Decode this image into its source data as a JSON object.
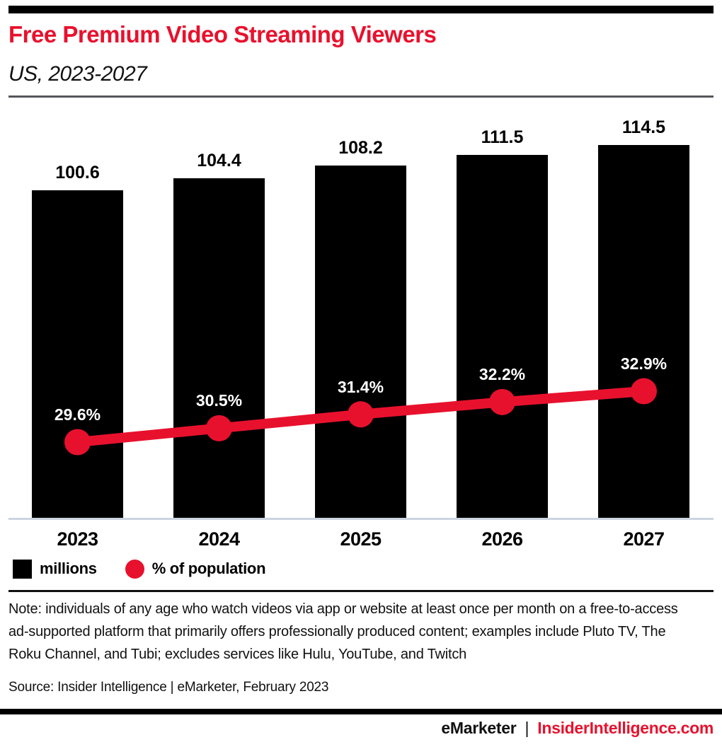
{
  "header": {
    "title": "Free Premium Video Streaming Viewers",
    "subtitle": "US, 2023-2027"
  },
  "chart_data": {
    "type": "bar",
    "categories": [
      "2023",
      "2024",
      "2025",
      "2026",
      "2027"
    ],
    "series": [
      {
        "name": "millions",
        "type": "bar",
        "color": "#000000",
        "values": [
          100.6,
          104.4,
          108.2,
          111.5,
          114.5
        ]
      },
      {
        "name": "% of population",
        "type": "line",
        "color": "#e8112d",
        "values": [
          29.6,
          30.5,
          31.4,
          32.2,
          32.9
        ]
      }
    ],
    "labels": {
      "bars": [
        "100.6",
        "104.4",
        "108.2",
        "111.5",
        "114.5"
      ],
      "line": [
        "29.6%",
        "30.5%",
        "31.4%",
        "32.2%",
        "32.9%"
      ]
    },
    "title": "Free Premium Video Streaming Viewers",
    "subtitle": "US, 2023-2027",
    "xlabel": "",
    "ylabel": "",
    "grid": false,
    "legend_position": "bottom-left"
  },
  "legend": {
    "bar_label": "millions",
    "line_label": "% of population"
  },
  "note": "Note: individuals of any age who watch videos via app or website at least once per month on a free-to-access ad-supported platform that primarily offers professionally produced content; examples include Pluto TV, The Roku Channel, and Tubi; excludes services like Hulu, YouTube, and Twitch",
  "source": "Source: Insider Intelligence | eMarketer, February 2023",
  "footer": {
    "brand": "eMarketer",
    "separator": "|",
    "site": "InsiderIntelligence.com"
  },
  "colors": {
    "accent_red": "#e8112d",
    "bar_black": "#000000",
    "baseline_gray": "#ccd4e0"
  }
}
